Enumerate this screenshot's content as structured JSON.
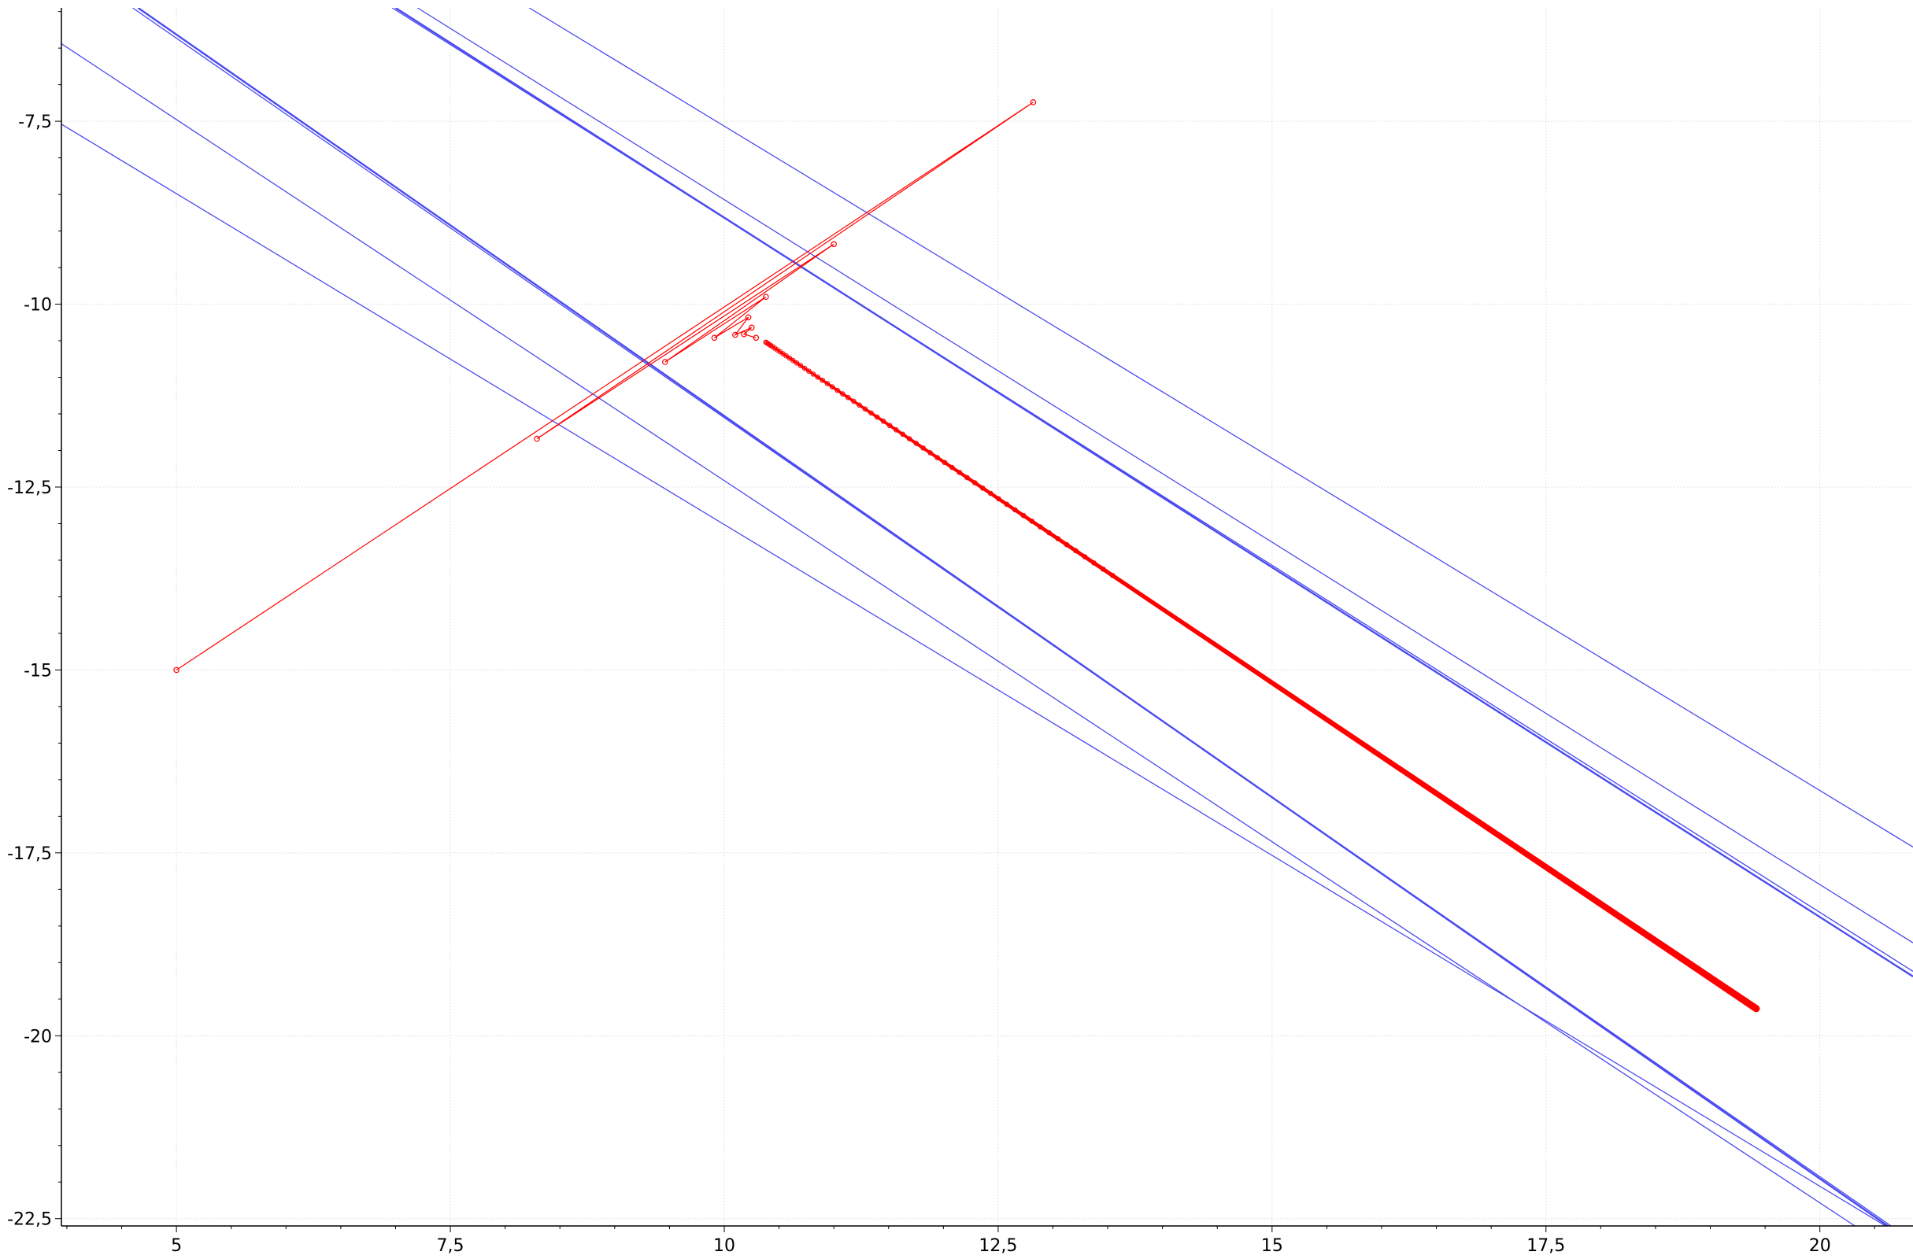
{
  "chart_data": {
    "type": "line",
    "title": "",
    "xlabel": "",
    "ylabel": "",
    "xlim": [
      3.95,
      20.85
    ],
    "ylim": [
      -22.6,
      -5.95
    ],
    "grid": true,
    "x_ticks": [
      5,
      7.5,
      10,
      12.5,
      15,
      17.5,
      20
    ],
    "x_tick_labels": [
      "5",
      "7,5",
      "10",
      "12,5",
      "15",
      "17,5",
      "20"
    ],
    "y_ticks": [
      -7.5,
      -10,
      -12.5,
      -15,
      -17.5,
      -20,
      -22.5
    ],
    "y_tick_labels": [
      "-7,5",
      "-10",
      "-12,5",
      "-15",
      "-17,5",
      "-20",
      "-22,5"
    ],
    "colors": {
      "lines": "#4b4bf0",
      "iterates": "#ff0000",
      "grid": "#e3e3e3",
      "axis": "#000000"
    },
    "series": [
      {
        "kind": "line",
        "x": [
          3.95,
          20.6
        ],
        "y": [
          -7.54,
          -22.6
        ]
      },
      {
        "kind": "line",
        "x": [
          3.95,
          20.32
        ],
        "y": [
          -6.44,
          -22.6
        ]
      },
      {
        "kind": "line",
        "x": [
          4.6,
          20.65
        ],
        "y": [
          -5.95,
          -22.6
        ]
      },
      {
        "kind": "line",
        "x": [
          4.65,
          20.62
        ],
        "y": [
          -5.95,
          -22.6
        ],
        "strong": true
      },
      {
        "kind": "line",
        "x": [
          6.97,
          20.85
        ],
        "y": [
          -5.95,
          -19.12
        ]
      },
      {
        "kind": "line",
        "x": [
          7.0,
          20.85
        ],
        "y": [
          -5.95,
          -19.19
        ],
        "strong": true
      },
      {
        "kind": "line",
        "x": [
          7.2,
          20.85
        ],
        "y": [
          -5.95,
          -18.73
        ]
      },
      {
        "kind": "line",
        "x": [
          8.22,
          20.85
        ],
        "y": [
          -5.95,
          -17.42
        ]
      },
      {
        "kind": "iterates",
        "x": [
          5.0,
          12.82,
          8.29,
          11.0,
          9.46,
          10.38,
          9.91,
          10.22,
          10.1,
          10.25,
          10.18,
          10.29
        ],
        "y": [
          -15.0,
          -7.24,
          -11.84,
          -9.18,
          -10.79,
          -9.9,
          -10.46,
          -10.18,
          -10.42,
          -10.32,
          -10.41,
          -10.46
        ]
      },
      {
        "kind": "trajectory",
        "x": [
          10.38,
          19.42
        ],
        "y": [
          -10.52,
          -19.63
        ]
      }
    ]
  }
}
